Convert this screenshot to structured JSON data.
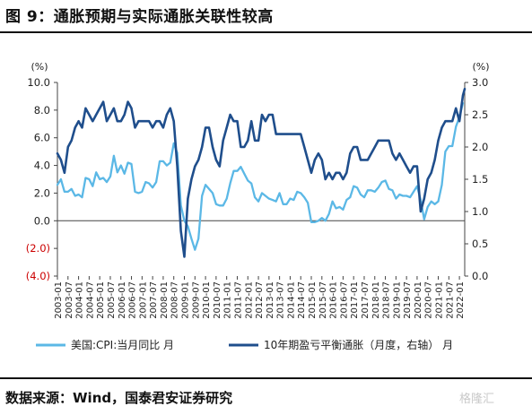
{
  "figure": {
    "title": "图 9：通胀预期与实际通胀关联性较高",
    "source": "数据来源：Wind，国泰君安证券研究",
    "watermark": "格隆汇"
  },
  "chart_data": {
    "type": "line",
    "left_axis": {
      "unit": "(%)",
      "ylim": [
        -4,
        10
      ],
      "ticks": [
        10,
        8,
        6,
        4,
        2,
        0,
        -2,
        -4
      ],
      "tick_labels": [
        "10.0",
        "8.0",
        "6.0",
        "4.0",
        "2.0",
        "0.0",
        "(2.0)",
        "(4.0)"
      ],
      "negative_color": "#cc0000"
    },
    "right_axis": {
      "unit": "(%)",
      "ylim": [
        0,
        3
      ],
      "ticks": [
        3,
        2.5,
        2,
        1.5,
        1,
        0.5,
        0
      ],
      "tick_labels": [
        "3.0",
        "2.5",
        "2.0",
        "1.5",
        "1.0",
        "0.5",
        "0.0"
      ]
    },
    "x_axis": {
      "range": [
        "2003-01",
        "2022-04"
      ],
      "tick_labels": [
        "2003-01",
        "2003-07",
        "2004-01",
        "2004-07",
        "2005-01",
        "2005-07",
        "2006-01",
        "2006-07",
        "2007-01",
        "2007-07",
        "2008-01",
        "2008-07",
        "2009-01",
        "2009-07",
        "2010-01",
        "2010-07",
        "2011-01",
        "2011-07",
        "2012-01",
        "2012-07",
        "2013-01",
        "2013-07",
        "2014-01",
        "2014-07",
        "2015-01",
        "2015-07",
        "2016-01",
        "2016-07",
        "2017-01",
        "2017-07",
        "2018-01",
        "2018-07",
        "2019-01",
        "2019-07",
        "2020-01",
        "2020-07",
        "2021-01",
        "2021-07",
        "2022-01"
      ]
    },
    "series": [
      {
        "name": "美国:CPI:当月同比  月",
        "axis": "left",
        "color": "#5bb8e6",
        "points": [
          [
            "2003-01",
            2.6
          ],
          [
            "2003-03",
            3.0
          ],
          [
            "2003-05",
            2.1
          ],
          [
            "2003-07",
            2.1
          ],
          [
            "2003-09",
            2.3
          ],
          [
            "2003-11",
            1.8
          ],
          [
            "2004-01",
            1.9
          ],
          [
            "2004-03",
            1.7
          ],
          [
            "2004-05",
            3.1
          ],
          [
            "2004-07",
            3.0
          ],
          [
            "2004-09",
            2.5
          ],
          [
            "2004-11",
            3.5
          ],
          [
            "2005-01",
            3.0
          ],
          [
            "2005-03",
            3.1
          ],
          [
            "2005-05",
            2.8
          ],
          [
            "2005-07",
            3.2
          ],
          [
            "2005-09",
            4.7
          ],
          [
            "2005-11",
            3.5
          ],
          [
            "2006-01",
            4.0
          ],
          [
            "2006-03",
            3.4
          ],
          [
            "2006-05",
            4.2
          ],
          [
            "2006-07",
            4.1
          ],
          [
            "2006-09",
            2.1
          ],
          [
            "2006-11",
            2.0
          ],
          [
            "2007-01",
            2.1
          ],
          [
            "2007-03",
            2.8
          ],
          [
            "2007-05",
            2.7
          ],
          [
            "2007-07",
            2.4
          ],
          [
            "2007-09",
            2.8
          ],
          [
            "2007-11",
            4.3
          ],
          [
            "2008-01",
            4.3
          ],
          [
            "2008-03",
            4.0
          ],
          [
            "2008-05",
            4.2
          ],
          [
            "2008-07",
            5.6
          ],
          [
            "2008-09",
            4.9
          ],
          [
            "2008-11",
            1.1
          ],
          [
            "2009-01",
            0.0
          ],
          [
            "2009-03",
            -0.4
          ],
          [
            "2009-05",
            -1.3
          ],
          [
            "2009-07",
            -2.1
          ],
          [
            "2009-09",
            -1.3
          ],
          [
            "2009-11",
            1.8
          ],
          [
            "2010-01",
            2.6
          ],
          [
            "2010-03",
            2.3
          ],
          [
            "2010-05",
            2.0
          ],
          [
            "2010-07",
            1.2
          ],
          [
            "2010-09",
            1.1
          ],
          [
            "2010-11",
            1.1
          ],
          [
            "2011-01",
            1.6
          ],
          [
            "2011-03",
            2.7
          ],
          [
            "2011-05",
            3.6
          ],
          [
            "2011-07",
            3.6
          ],
          [
            "2011-09",
            3.9
          ],
          [
            "2011-11",
            3.4
          ],
          [
            "2012-01",
            2.9
          ],
          [
            "2012-03",
            2.7
          ],
          [
            "2012-05",
            1.7
          ],
          [
            "2012-07",
            1.4
          ],
          [
            "2012-09",
            2.0
          ],
          [
            "2012-11",
            1.8
          ],
          [
            "2013-01",
            1.6
          ],
          [
            "2013-03",
            1.5
          ],
          [
            "2013-05",
            1.4
          ],
          [
            "2013-07",
            2.0
          ],
          [
            "2013-09",
            1.2
          ],
          [
            "2013-11",
            1.2
          ],
          [
            "2014-01",
            1.6
          ],
          [
            "2014-03",
            1.5
          ],
          [
            "2014-05",
            2.1
          ],
          [
            "2014-07",
            2.0
          ],
          [
            "2014-09",
            1.7
          ],
          [
            "2014-11",
            1.3
          ],
          [
            "2015-01",
            -0.1
          ],
          [
            "2015-03",
            -0.1
          ],
          [
            "2015-05",
            0.0
          ],
          [
            "2015-07",
            0.2
          ],
          [
            "2015-09",
            0.0
          ],
          [
            "2015-11",
            0.5
          ],
          [
            "2016-01",
            1.4
          ],
          [
            "2016-03",
            0.9
          ],
          [
            "2016-05",
            1.0
          ],
          [
            "2016-07",
            0.8
          ],
          [
            "2016-09",
            1.5
          ],
          [
            "2016-11",
            1.7
          ],
          [
            "2017-01",
            2.5
          ],
          [
            "2017-03",
            2.4
          ],
          [
            "2017-05",
            1.9
          ],
          [
            "2017-07",
            1.7
          ],
          [
            "2017-09",
            2.2
          ],
          [
            "2017-11",
            2.2
          ],
          [
            "2018-01",
            2.1
          ],
          [
            "2018-03",
            2.4
          ],
          [
            "2018-05",
            2.8
          ],
          [
            "2018-07",
            2.9
          ],
          [
            "2018-09",
            2.3
          ],
          [
            "2018-11",
            2.2
          ],
          [
            "2019-01",
            1.6
          ],
          [
            "2019-03",
            1.9
          ],
          [
            "2019-05",
            1.8
          ],
          [
            "2019-07",
            1.8
          ],
          [
            "2019-09",
            1.7
          ],
          [
            "2019-11",
            2.1
          ],
          [
            "2020-01",
            2.5
          ],
          [
            "2020-03",
            1.5
          ],
          [
            "2020-05",
            0.1
          ],
          [
            "2020-07",
            1.0
          ],
          [
            "2020-09",
            1.4
          ],
          [
            "2020-11",
            1.2
          ],
          [
            "2021-01",
            1.4
          ],
          [
            "2021-03",
            2.6
          ],
          [
            "2021-05",
            5.0
          ],
          [
            "2021-07",
            5.4
          ],
          [
            "2021-09",
            5.4
          ],
          [
            "2021-11",
            6.8
          ],
          [
            "2022-01",
            7.5
          ],
          [
            "2022-03",
            8.5
          ]
        ]
      },
      {
        "name": "10年期盈亏平衡通胀（月度，右轴）  月",
        "axis": "right",
        "color": "#1f4e8c",
        "points": [
          [
            "2003-01",
            1.9
          ],
          [
            "2003-03",
            1.8
          ],
          [
            "2003-05",
            1.6
          ],
          [
            "2003-07",
            2.0
          ],
          [
            "2003-09",
            2.1
          ],
          [
            "2003-11",
            2.3
          ],
          [
            "2004-01",
            2.4
          ],
          [
            "2004-03",
            2.3
          ],
          [
            "2004-05",
            2.6
          ],
          [
            "2004-07",
            2.5
          ],
          [
            "2004-09",
            2.4
          ],
          [
            "2004-11",
            2.5
          ],
          [
            "2005-01",
            2.6
          ],
          [
            "2005-03",
            2.7
          ],
          [
            "2005-05",
            2.4
          ],
          [
            "2005-07",
            2.5
          ],
          [
            "2005-09",
            2.6
          ],
          [
            "2005-11",
            2.4
          ],
          [
            "2006-01",
            2.4
          ],
          [
            "2006-03",
            2.5
          ],
          [
            "2006-05",
            2.7
          ],
          [
            "2006-07",
            2.6
          ],
          [
            "2006-09",
            2.3
          ],
          [
            "2006-11",
            2.4
          ],
          [
            "2007-01",
            2.4
          ],
          [
            "2007-03",
            2.4
          ],
          [
            "2007-05",
            2.4
          ],
          [
            "2007-07",
            2.3
          ],
          [
            "2007-09",
            2.4
          ],
          [
            "2007-11",
            2.4
          ],
          [
            "2008-01",
            2.3
          ],
          [
            "2008-03",
            2.5
          ],
          [
            "2008-05",
            2.6
          ],
          [
            "2008-07",
            2.4
          ],
          [
            "2008-09",
            1.7
          ],
          [
            "2008-11",
            0.7
          ],
          [
            "2009-01",
            0.3
          ],
          [
            "2009-03",
            1.2
          ],
          [
            "2009-05",
            1.5
          ],
          [
            "2009-07",
            1.7
          ],
          [
            "2009-09",
            1.8
          ],
          [
            "2009-11",
            2.0
          ],
          [
            "2010-01",
            2.3
          ],
          [
            "2010-03",
            2.3
          ],
          [
            "2010-05",
            2.0
          ],
          [
            "2010-07",
            1.8
          ],
          [
            "2010-09",
            1.7
          ],
          [
            "2010-11",
            2.1
          ],
          [
            "2011-01",
            2.3
          ],
          [
            "2011-03",
            2.5
          ],
          [
            "2011-05",
            2.4
          ],
          [
            "2011-07",
            2.4
          ],
          [
            "2011-09",
            2.0
          ],
          [
            "2011-11",
            2.0
          ],
          [
            "2012-01",
            2.1
          ],
          [
            "2012-03",
            2.4
          ],
          [
            "2012-05",
            2.1
          ],
          [
            "2012-07",
            2.1
          ],
          [
            "2012-09",
            2.5
          ],
          [
            "2012-11",
            2.4
          ],
          [
            "2013-01",
            2.5
          ],
          [
            "2013-03",
            2.5
          ],
          [
            "2013-05",
            2.2
          ],
          [
            "2013-07",
            2.2
          ],
          [
            "2013-09",
            2.2
          ],
          [
            "2013-11",
            2.2
          ],
          [
            "2014-01",
            2.2
          ],
          [
            "2014-03",
            2.2
          ],
          [
            "2014-05",
            2.2
          ],
          [
            "2014-07",
            2.2
          ],
          [
            "2014-09",
            2.0
          ],
          [
            "2014-11",
            1.8
          ],
          [
            "2015-01",
            1.6
          ],
          [
            "2015-03",
            1.8
          ],
          [
            "2015-05",
            1.9
          ],
          [
            "2015-07",
            1.8
          ],
          [
            "2015-09",
            1.5
          ],
          [
            "2015-11",
            1.6
          ],
          [
            "2016-01",
            1.5
          ],
          [
            "2016-03",
            1.6
          ],
          [
            "2016-05",
            1.6
          ],
          [
            "2016-07",
            1.5
          ],
          [
            "2016-09",
            1.6
          ],
          [
            "2016-11",
            1.9
          ],
          [
            "2017-01",
            2.0
          ],
          [
            "2017-03",
            2.0
          ],
          [
            "2017-05",
            1.8
          ],
          [
            "2017-07",
            1.8
          ],
          [
            "2017-09",
            1.8
          ],
          [
            "2017-11",
            1.9
          ],
          [
            "2018-01",
            2.0
          ],
          [
            "2018-03",
            2.1
          ],
          [
            "2018-05",
            2.1
          ],
          [
            "2018-07",
            2.1
          ],
          [
            "2018-09",
            2.1
          ],
          [
            "2018-11",
            1.9
          ],
          [
            "2019-01",
            1.8
          ],
          [
            "2019-03",
            1.9
          ],
          [
            "2019-05",
            1.8
          ],
          [
            "2019-07",
            1.7
          ],
          [
            "2019-09",
            1.6
          ],
          [
            "2019-11",
            1.7
          ],
          [
            "2020-01",
            1.7
          ],
          [
            "2020-03",
            1.0
          ],
          [
            "2020-05",
            1.2
          ],
          [
            "2020-07",
            1.5
          ],
          [
            "2020-09",
            1.6
          ],
          [
            "2020-11",
            1.8
          ],
          [
            "2021-01",
            2.1
          ],
          [
            "2021-03",
            2.3
          ],
          [
            "2021-05",
            2.4
          ],
          [
            "2021-07",
            2.4
          ],
          [
            "2021-09",
            2.4
          ],
          [
            "2021-11",
            2.6
          ],
          [
            "2022-01",
            2.4
          ],
          [
            "2022-03",
            2.8
          ],
          [
            "2022-04",
            2.9
          ]
        ]
      }
    ],
    "legend": "bottom",
    "grid": false
  }
}
